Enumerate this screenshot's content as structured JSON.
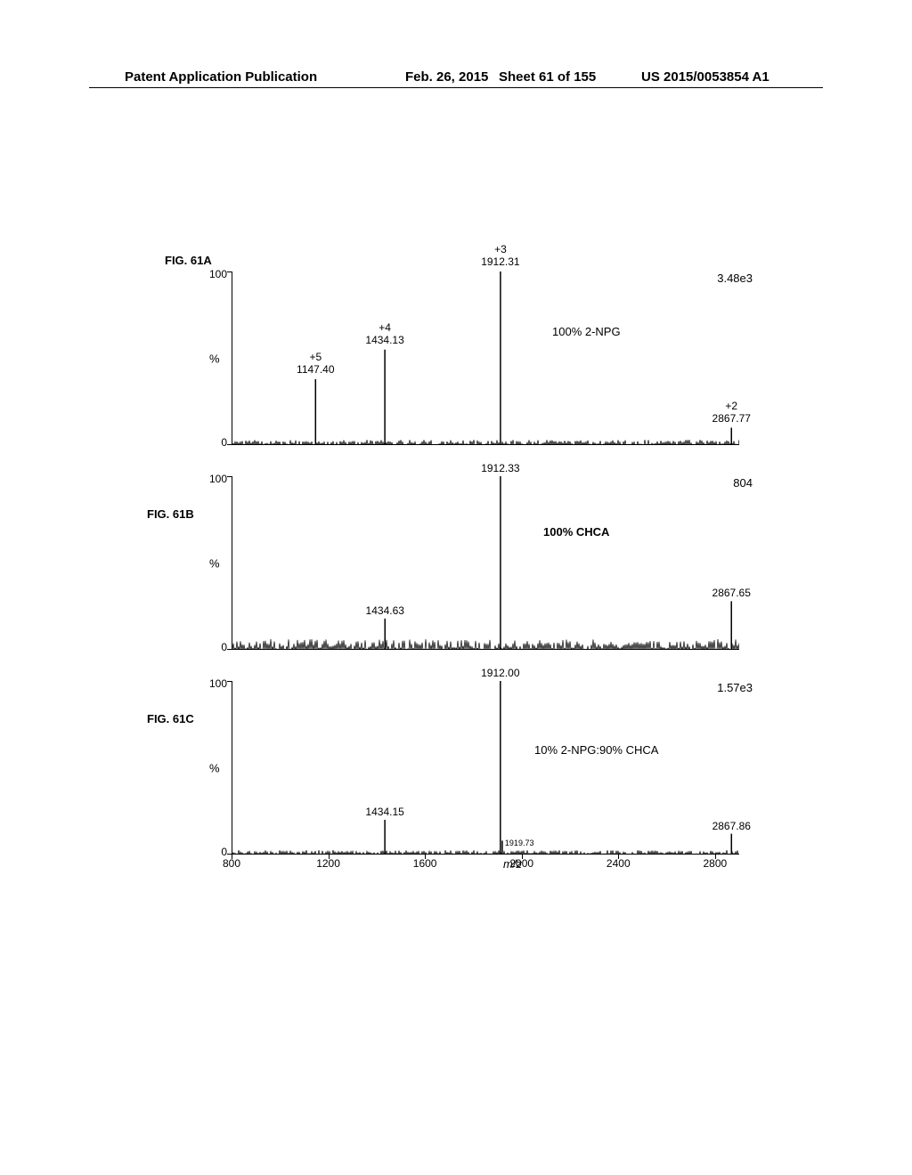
{
  "header": {
    "left": "Patent Application Publication",
    "date": "Feb. 26, 2015",
    "sheet": "Sheet 61 of 155",
    "docnum": "US 2015/0053854 A1"
  },
  "figure": {
    "xlabel": "m/z",
    "xlim": [
      800,
      2900
    ],
    "xticks": [
      800,
      1200,
      1600,
      2000,
      2400,
      2800
    ],
    "ylim": [
      0,
      100
    ],
    "yticks": [
      0,
      100
    ],
    "ylabel": "%",
    "panels": {
      "a": {
        "label": "FIG. 61A",
        "intensity": "3.48e3",
        "condition": "100% 2-NPG",
        "peaks": [
          {
            "mz": 1147.4,
            "rel": 38,
            "label": "+5\n1147.40",
            "charge": "+5"
          },
          {
            "mz": 1434.13,
            "rel": 55,
            "label": "+4\n1434.13",
            "charge": "+4"
          },
          {
            "mz": 1912.31,
            "rel": 100,
            "label": "+3\n1912.31",
            "charge": "+3"
          },
          {
            "mz": 2867.77,
            "rel": 10,
            "label": "+2\n2867.77",
            "charge": "+2"
          }
        ]
      },
      "b": {
        "label": "FIG. 61B",
        "intensity": "804",
        "condition": "100% CHCA",
        "peaks": [
          {
            "mz": 1434.63,
            "rel": 18,
            "label": "1434.63"
          },
          {
            "mz": 1912.33,
            "rel": 100,
            "label": "1912.33"
          },
          {
            "mz": 2867.65,
            "rel": 28,
            "label": "2867.65"
          }
        ]
      },
      "c": {
        "label": "FIG. 61C",
        "intensity": "1.57e3",
        "condition": "10% 2-NPG:90% CHCA",
        "peaks": [
          {
            "mz": 1434.15,
            "rel": 20,
            "label": "1434.15"
          },
          {
            "mz": 1912.0,
            "rel": 100,
            "label": "1912.00"
          },
          {
            "mz": 1919.73,
            "rel": 8,
            "label": "1919.73",
            "small": true
          },
          {
            "mz": 2867.86,
            "rel": 12,
            "label": "2867.86"
          }
        ]
      }
    },
    "colors": {
      "line": "#000000",
      "bg": "#ffffff",
      "text": "#000000"
    }
  }
}
